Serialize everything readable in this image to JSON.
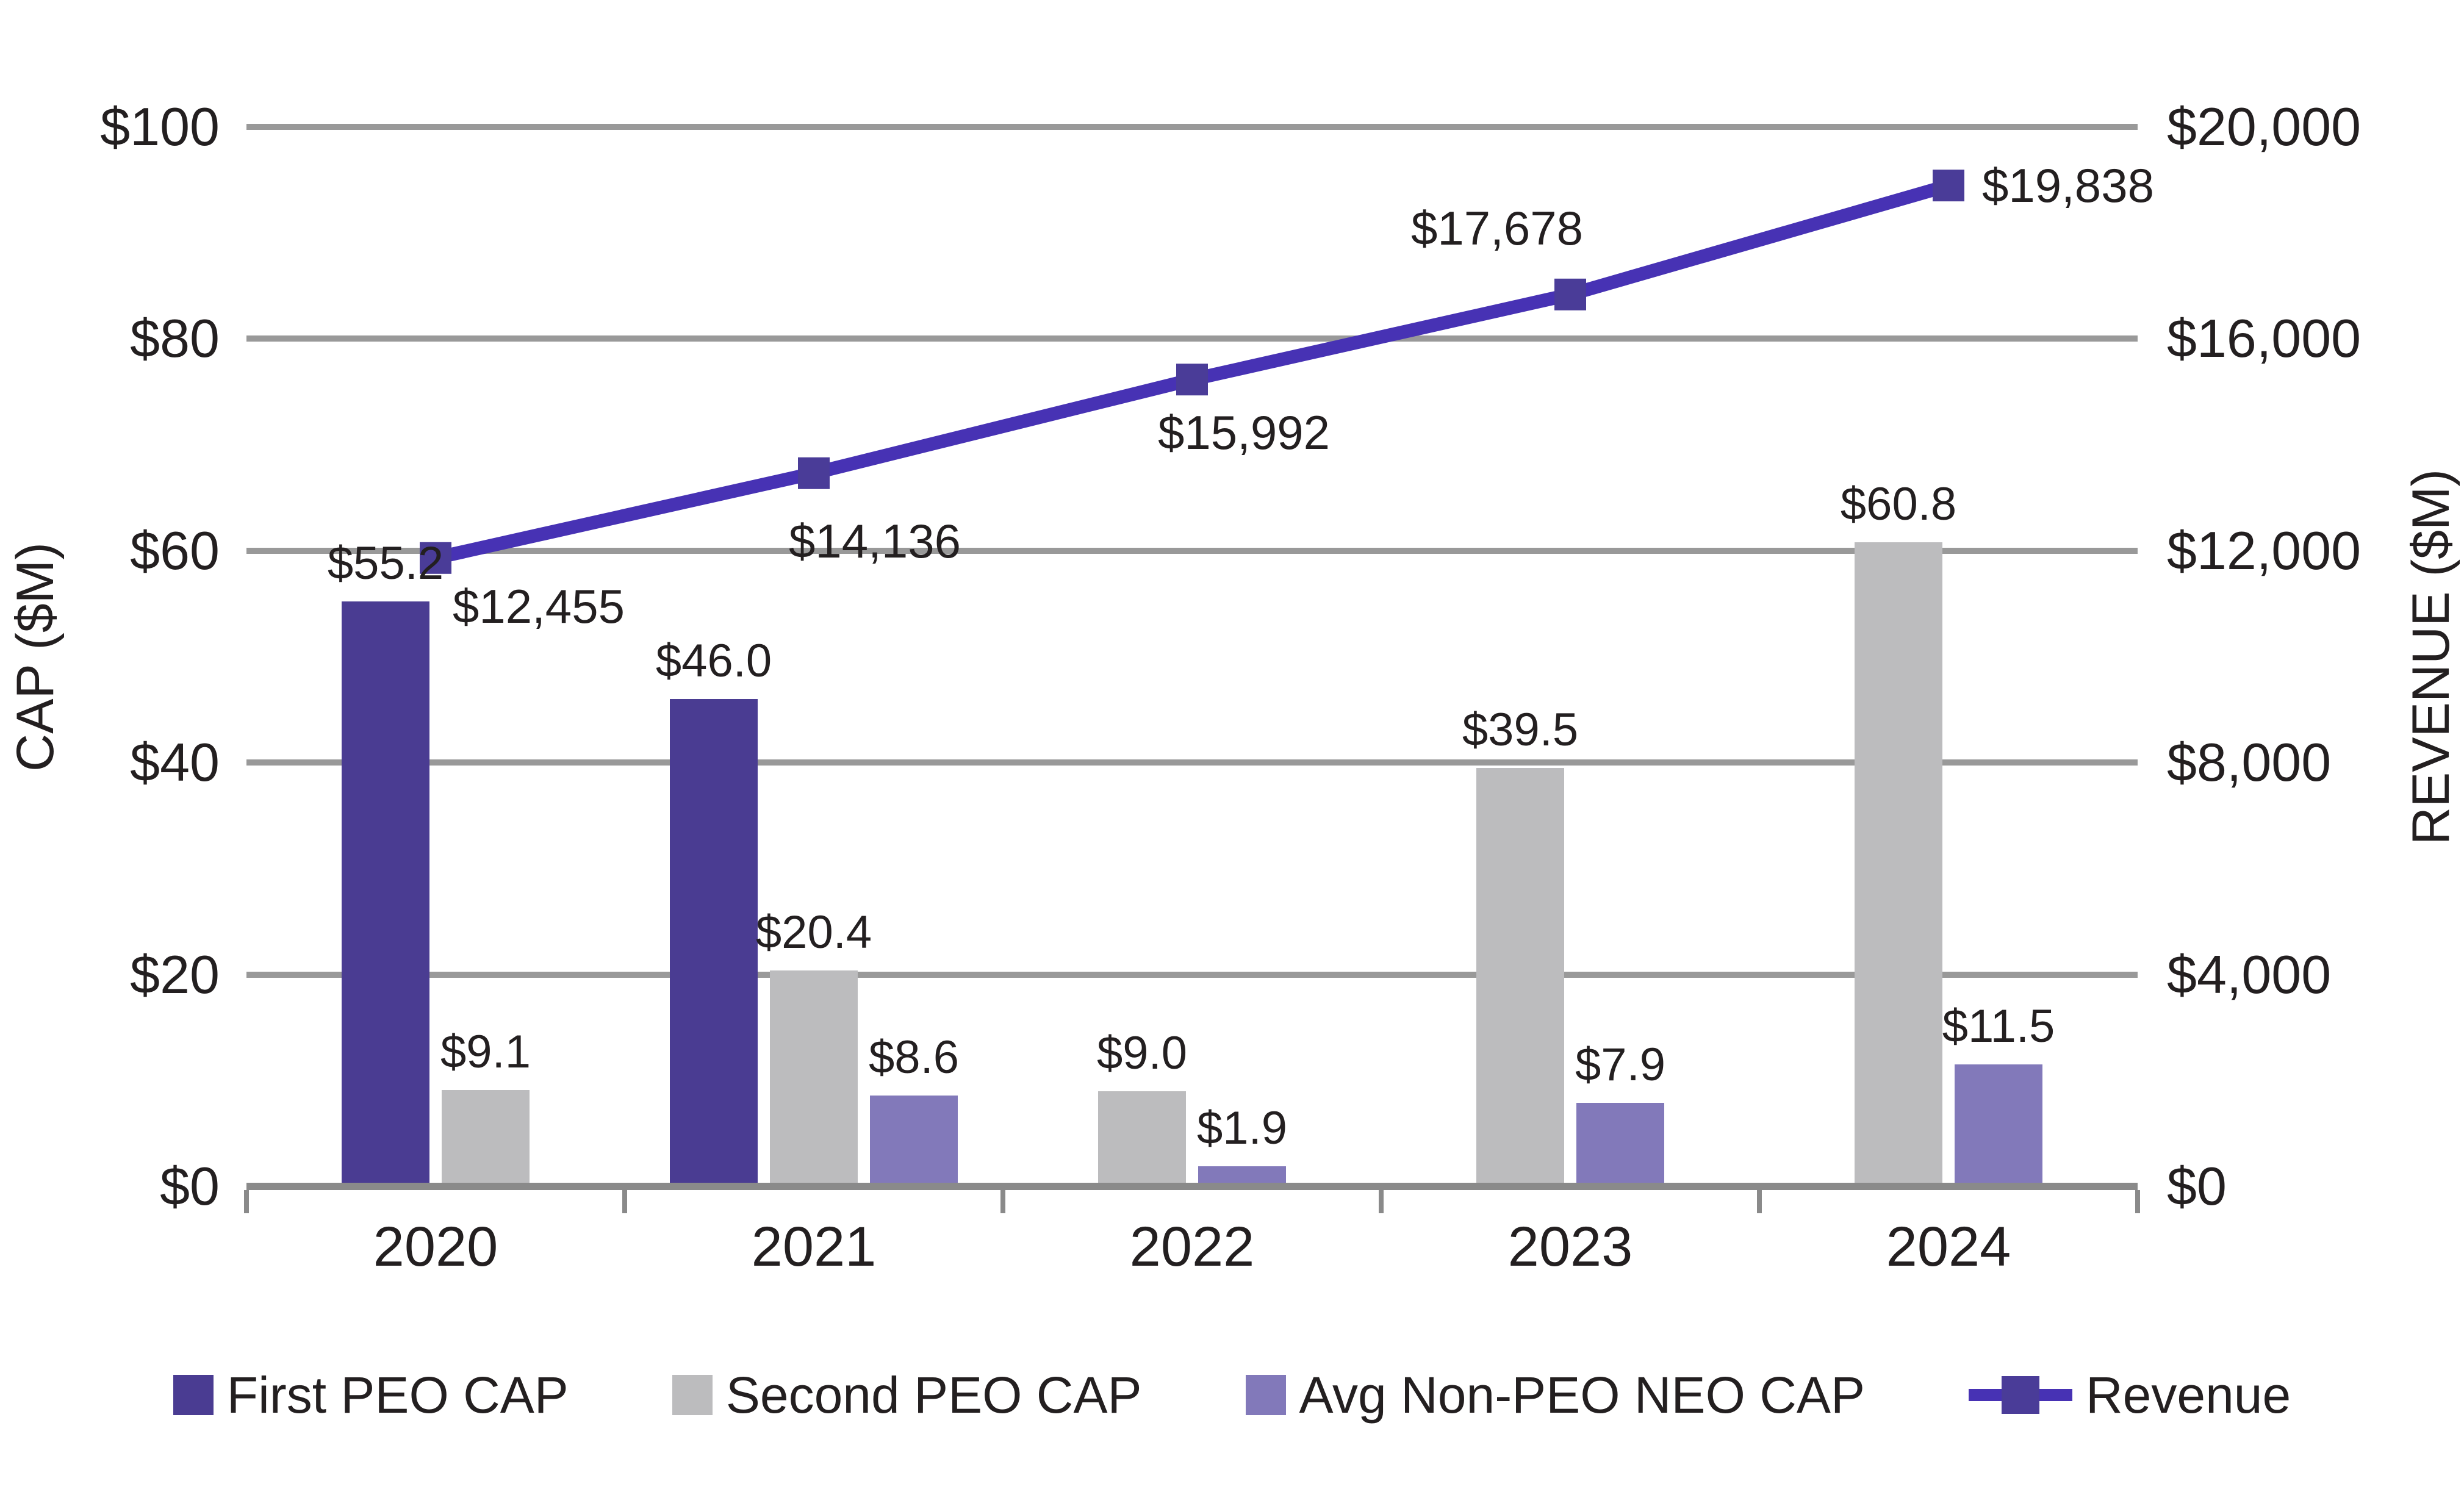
{
  "chart_data": {
    "type": "combo-bar-line",
    "categories": [
      "2020",
      "2021",
      "2022",
      "2023",
      "2024"
    ],
    "bar_series": [
      {
        "name": "First PEO CAP",
        "color": "#4a3c92",
        "values": [
          55.2,
          46.0,
          null,
          null,
          null
        ],
        "labels": [
          "$55.2",
          "$46.0",
          null,
          null,
          null
        ]
      },
      {
        "name": "Second PEO CAP",
        "color": "#bcbcbe",
        "values": [
          9.1,
          20.4,
          9.0,
          39.5,
          60.8
        ],
        "labels": [
          "$9.1",
          "$20.4",
          "$9.0",
          "$39.5",
          "$60.8"
        ]
      },
      {
        "name": "Avg Non-PEO NEO CAP",
        "color": "#8279ba",
        "values": [
          null,
          8.6,
          1.9,
          7.9,
          11.5
        ],
        "labels": [
          null,
          "$8.6",
          "$1.9",
          "$7.9",
          "$11.5"
        ]
      }
    ],
    "line_series": {
      "name": "Revenue",
      "color": "#4732b4",
      "marker_color": "#4a3c98",
      "values": [
        12455,
        14136,
        15992,
        17678,
        19838
      ],
      "labels": [
        "$12,455",
        "$14,136",
        "$15,992",
        "$17,678",
        "$19,838"
      ]
    },
    "left_axis": {
      "title": "CAP ($M)",
      "min": 0,
      "max": 100,
      "tick_labels": [
        "$0",
        "$20",
        "$40",
        "$60",
        "$80",
        "$100"
      ]
    },
    "right_axis": {
      "title": "REVENUE ($M)",
      "min": 0,
      "max": 20000,
      "tick_labels": [
        "$0",
        "$4,000",
        "$8,000",
        "$12,000",
        "$16,000",
        "$20,000"
      ]
    },
    "line_axis_hint": {
      "min": 0,
      "max": 21000
    },
    "grid": true,
    "legend_position": "bottom",
    "colors": {
      "gridline": "#999999",
      "axis": "#8a8a8a",
      "text": "#231f20"
    }
  }
}
